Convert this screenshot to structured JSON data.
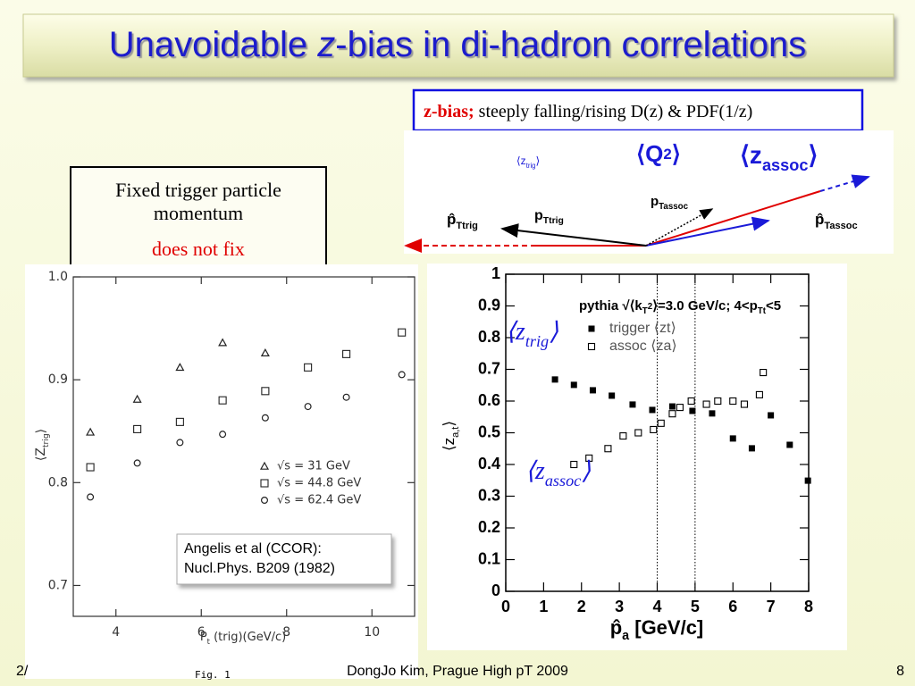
{
  "title": {
    "pre": "Unavoidable ",
    "italic": "z",
    "post": "-bias in di-hadron correlations"
  },
  "zbias": {
    "label": "z-bias;",
    "text": "steeply falling/rising D(z) & PDF(1/z)"
  },
  "diagram": {
    "z_trig": [
      "⟨z",
      "trig",
      "⟩"
    ],
    "q2": [
      "⟨Q",
      "2",
      "⟩"
    ],
    "z_assoc": [
      "⟨z",
      "assoc",
      "⟩"
    ],
    "p_hat_trig": [
      "p̂",
      "Ttrig"
    ],
    "p_trig": [
      "p",
      "Ttrig"
    ],
    "p_assoc": [
      "p",
      "Tassoc"
    ],
    "p_hat_assoc": [
      "p̂",
      "Tassoc"
    ]
  },
  "note": {
    "text": "Fixed trigger particle momentum",
    "red": "does not fix"
  },
  "footer": {
    "left": "2/",
    "fig": "Fig. 1",
    "center": "DongJo Kim, Prague High pT 2009",
    "page": "8"
  },
  "chart_data": [
    {
      "type": "scatter",
      "x_label": [
        "P",
        "t",
        " (trig)(GeV/c)"
      ],
      "y_label": [
        "⟨Z",
        "trig",
        "⟩"
      ],
      "xlim": [
        3,
        11
      ],
      "ylim": [
        0.67,
        1.0
      ],
      "xticks": [
        4,
        6,
        8,
        10
      ],
      "yticks": [
        0.7,
        0.8,
        0.9,
        {
          "value": 1,
          "label": "1.0"
        }
      ],
      "series": [
        {
          "name": "√s = 31 GeV",
          "marker": "triangle",
          "color": "#222222",
          "x": [
            3.4,
            4.5,
            5.5,
            6.5,
            7.5
          ],
          "values": [
            0.849,
            0.881,
            0.912,
            0.936,
            0.926
          ]
        },
        {
          "name": "√s = 44.8 GeV",
          "marker": "open-square",
          "color": "#222222",
          "x": [
            3.4,
            4.5,
            5.5,
            6.5,
            7.5,
            8.5,
            9.4,
            10.7
          ],
          "values": [
            0.815,
            0.852,
            0.859,
            0.88,
            0.889,
            0.912,
            0.925,
            0.946
          ]
        },
        {
          "name": "√s = 62.4 GeV",
          "marker": "circle",
          "color": "#222222",
          "x": [
            3.4,
            4.5,
            5.5,
            6.5,
            7.5,
            8.5,
            9.4,
            10.7
          ],
          "values": [
            0.786,
            0.819,
            0.839,
            0.847,
            0.863,
            0.874,
            0.883,
            0.905
          ]
        }
      ],
      "annotation": [
        "Angelis et al (CCOR):",
        "Nucl.Phys. B209 (1982)"
      ]
    },
    {
      "type": "scatter",
      "x_label": [
        "p̂",
        "a",
        " [GeV/c]"
      ],
      "y_label": [
        "⟨z",
        "a,t",
        "⟩"
      ],
      "xlim": [
        0,
        8
      ],
      "ylim": [
        0,
        1
      ],
      "xticks": [
        0,
        1,
        2,
        3,
        4,
        5,
        6,
        7,
        8
      ],
      "yticks": [
        0,
        0.1,
        0.2,
        0.3,
        0.4,
        0.5,
        0.6,
        0.7,
        0.8,
        0.9,
        1
      ],
      "vlines": [
        4,
        5
      ],
      "legend_title": [
        "pythia √⟨k",
        "T",
        "2",
        "⟩=3.0 GeV/c; 4<p",
        "Tt",
        "<5"
      ],
      "series": [
        {
          "name": "trigger ⟨zt⟩",
          "marker": "filled-square",
          "color": "#000000",
          "x": [
            1.3,
            1.8,
            2.3,
            2.8,
            3.35,
            3.87,
            4.4,
            4.93,
            5.45,
            6.0,
            6.5,
            7.0,
            7.5,
            7.98
          ],
          "values": [
            0.668,
            0.651,
            0.634,
            0.617,
            0.589,
            0.572,
            0.583,
            0.569,
            0.561,
            0.482,
            0.451,
            0.555,
            0.462,
            0.349
          ]
        },
        {
          "name": "assoc ⟨za⟩",
          "marker": "open-square",
          "color": "#000000",
          "x": [
            1.8,
            2.2,
            2.7,
            3.1,
            3.5,
            3.9,
            4.1,
            4.4,
            4.6,
            4.9,
            5.3,
            5.6,
            6.0,
            6.3,
            6.7,
            6.8
          ],
          "values": [
            0.4,
            0.42,
            0.45,
            0.49,
            0.5,
            0.51,
            0.53,
            0.56,
            0.58,
            0.6,
            0.59,
            0.6,
            0.6,
            0.59,
            0.62,
            0.69
          ]
        }
      ],
      "annotations": [
        [
          "⟨z",
          "trig",
          "⟩"
        ],
        [
          "⟨z",
          "assoc",
          "⟩"
        ]
      ]
    }
  ]
}
